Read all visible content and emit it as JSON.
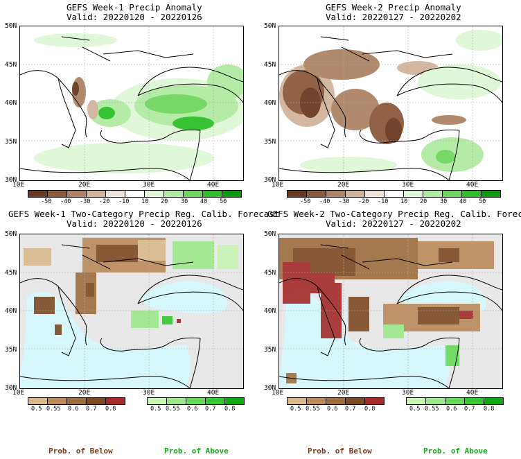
{
  "panels": {
    "tl": {
      "title_line1": "GEFS Week-1 Precip Anomaly",
      "title_line2": "Valid: 20220120 - 20220126"
    },
    "tr": {
      "title_line1": "GEFS Week-2 Precip Anomaly",
      "title_line2": "Valid: 20220127 - 20220202"
    },
    "bl": {
      "title_line1": "GEFS Week-1 Two-Category Precip Reg. Calib. Forecast",
      "title_line2": "Valid: 20220120 - 20220126"
    },
    "br": {
      "title_line1": "GEFS Week-2 Two-Category Precip Reg. Calib. Forecast",
      "title_line2": "Valid: 20220127 - 20220202"
    }
  },
  "axes": {
    "lat_labels": [
      "50N",
      "45N",
      "40N",
      "35N",
      "30N"
    ],
    "lon_labels": [
      "10E",
      "20E",
      "30E",
      "40E"
    ]
  },
  "anomaly_colorbar": {
    "ticks": [
      "-50",
      "-40",
      "-30",
      "-20",
      "-10",
      "10",
      "20",
      "30",
      "40",
      "50"
    ],
    "colors": [
      "#6b3a22",
      "#8c5a3c",
      "#ad8467",
      "#d2b49d",
      "#efe3d8",
      "#ffffff",
      "#dff7d6",
      "#b1eaa3",
      "#6fd65f",
      "#2dbf2a",
      "#0e9a10"
    ]
  },
  "prob_colorbar": {
    "below_ticks": [
      "0.5",
      "0.55",
      "0.6",
      "0.7",
      "0.8"
    ],
    "below_colors": [
      "#d8b98c",
      "#b98a5a",
      "#9d6e3e",
      "#7d4a24",
      "#a52a2a"
    ],
    "above_ticks": [
      "0.5",
      "0.55",
      "0.6",
      "0.7",
      "0.8"
    ],
    "above_colors": [
      "#c8f5b4",
      "#9de88a",
      "#66da5a",
      "#35c634",
      "#10a812"
    ],
    "below_label": "Prob. of Below",
    "above_label": "Prob. of Above",
    "below_label_color": "#7a3b1d",
    "above_label_color": "#1aa51a"
  },
  "colors": {
    "sea_no_signal": "#d6f7fb",
    "land_no_signal": "#e8e8e8",
    "coastline": "#000000"
  }
}
